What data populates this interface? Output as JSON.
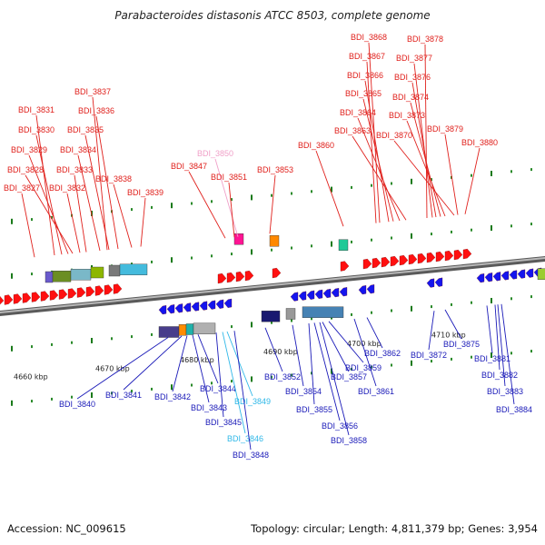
{
  "title": "Parabacteroides distasonis ATCC 8503, complete genome",
  "footer": {
    "accession": "Accession: NC_009615",
    "summary": "Topology: circular; Length: 4,811,379 bp; Genes: 3,954"
  },
  "colors": {
    "forward_label": "#e0201c",
    "reverse_label": "#1a1ab8",
    "pink_label": "#f0a0c8",
    "cyan_label": "#30b8e8",
    "forward_gene": "#ff1010",
    "reverse_gene": "#1515ee",
    "backbone": "#8a8a8a"
  },
  "scale_labels": [
    "4660 kbp",
    "4670 kbp",
    "4680 kbp",
    "4690 kbp",
    "4700 kbp",
    "4710 kbp"
  ],
  "top_labels": [
    {
      "text": "BDI_3837",
      "color": "red"
    },
    {
      "text": "BDI_3831",
      "color": "red"
    },
    {
      "text": "BDI_3836",
      "color": "red"
    },
    {
      "text": "BDI_3830",
      "color": "red"
    },
    {
      "text": "BDI_3835",
      "color": "red"
    },
    {
      "text": "BDI_3829",
      "color": "red"
    },
    {
      "text": "BDI_3834",
      "color": "red"
    },
    {
      "text": "BDI_3828",
      "color": "red"
    },
    {
      "text": "BDI_3833",
      "color": "red"
    },
    {
      "text": "BDI_3838",
      "color": "red"
    },
    {
      "text": "BDI_3827",
      "color": "red"
    },
    {
      "text": "BDI_3832",
      "color": "red"
    },
    {
      "text": "BDI_3839",
      "color": "red"
    },
    {
      "text": "BDI_3850",
      "color": "pink"
    },
    {
      "text": "BDI_3847",
      "color": "red"
    },
    {
      "text": "BDI_3851",
      "color": "red"
    },
    {
      "text": "BDI_3853",
      "color": "red"
    },
    {
      "text": "BDI_3860",
      "color": "red"
    },
    {
      "text": "BDI_3868",
      "color": "red"
    },
    {
      "text": "BDI_3878",
      "color": "red"
    },
    {
      "text": "BDI_3867",
      "color": "red"
    },
    {
      "text": "BDI_3877",
      "color": "red"
    },
    {
      "text": "BDI_3866",
      "color": "red"
    },
    {
      "text": "BDI_3876",
      "color": "red"
    },
    {
      "text": "BDI_3865",
      "color": "red"
    },
    {
      "text": "BDI_3874",
      "color": "red"
    },
    {
      "text": "BDI_3864",
      "color": "red"
    },
    {
      "text": "BDI_3873",
      "color": "red"
    },
    {
      "text": "BDI_3863",
      "color": "red"
    },
    {
      "text": "BDI_3870",
      "color": "red"
    },
    {
      "text": "BDI_3879",
      "color": "red"
    },
    {
      "text": "BDI_3880",
      "color": "red"
    }
  ],
  "bottom_labels": [
    {
      "text": "BDI_3840",
      "color": "blue"
    },
    {
      "text": "BDI_3841",
      "color": "blue"
    },
    {
      "text": "BDI_3842",
      "color": "blue"
    },
    {
      "text": "BDI_3844",
      "color": "blue"
    },
    {
      "text": "BDI_3843",
      "color": "blue"
    },
    {
      "text": "BDI_3849",
      "color": "cyan"
    },
    {
      "text": "BDI_3845",
      "color": "blue"
    },
    {
      "text": "BDI_3846",
      "color": "cyan"
    },
    {
      "text": "BDI_3848",
      "color": "blue"
    },
    {
      "text": "BDI_3852",
      "color": "blue"
    },
    {
      "text": "BDI_3854",
      "color": "blue"
    },
    {
      "text": "BDI_3855",
      "color": "blue"
    },
    {
      "text": "BDI_3857",
      "color": "blue"
    },
    {
      "text": "BDI_3859",
      "color": "blue"
    },
    {
      "text": "BDI_3856",
      "color": "blue"
    },
    {
      "text": "BDI_3858",
      "color": "blue"
    },
    {
      "text": "BDI_3861",
      "color": "blue"
    },
    {
      "text": "BDI_3862",
      "color": "blue"
    },
    {
      "text": "BDI_3875",
      "color": "blue"
    },
    {
      "text": "BDI_3872",
      "color": "blue"
    },
    {
      "text": "BDI_3881",
      "color": "blue"
    },
    {
      "text": "BDI_3882",
      "color": "blue"
    },
    {
      "text": "BDI_3883",
      "color": "blue"
    },
    {
      "text": "BDI_3884",
      "color": "blue"
    }
  ]
}
